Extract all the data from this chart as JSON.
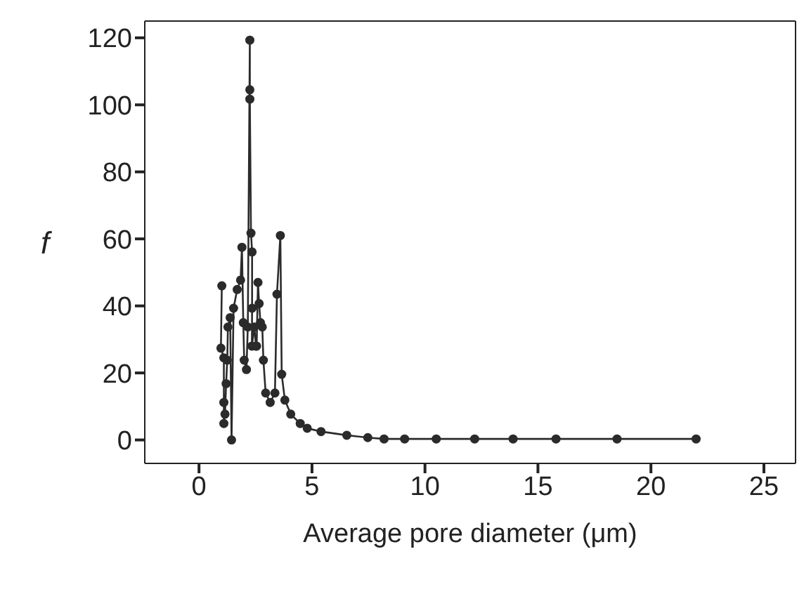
{
  "chart_data": {
    "type": "line",
    "xlabel": "Average pore diameter (μm)",
    "ylabel": "f",
    "xlim": [
      -2.4,
      26.4
    ],
    "ylim": [
      -7,
      125
    ],
    "xticks": [
      0,
      5,
      10,
      15,
      20,
      25
    ],
    "yticks": [
      0,
      20,
      40,
      60,
      80,
      100,
      120
    ],
    "marker": "circle",
    "line_style": "solid",
    "series": [
      {
        "color": "#2b2b2b",
        "x": [
          1.01,
          0.97,
          1.1,
          1.1,
          1.1,
          1.15,
          1.2,
          1.25,
          1.28,
          1.38,
          1.44,
          1.53,
          1.69,
          1.84,
          1.9,
          1.96,
          2.0,
          2.1,
          2.16,
          2.25,
          2.25,
          2.25,
          2.3,
          2.35,
          2.35,
          2.34,
          2.45,
          2.52,
          2.55,
          2.61,
          2.66,
          2.72,
          2.8,
          2.85,
          2.95,
          3.15,
          3.36,
          3.45,
          3.6,
          3.66,
          3.8,
          4.06,
          4.48,
          4.79,
          5.4,
          6.54,
          7.47,
          8.19,
          9.1,
          10.5,
          12.2,
          13.9,
          15.8,
          18.5,
          22
        ],
        "values": [
          46,
          27.4,
          24.5,
          11.2,
          4.9,
          7.7,
          16.8,
          23.8,
          33.7,
          36.5,
          0,
          39.3,
          44.9,
          47.7,
          57.5,
          35,
          23.8,
          21,
          33.7,
          119.3,
          104.5,
          101.7,
          61.7,
          56.1,
          39.3,
          28,
          33.7,
          28,
          28,
          47,
          40.7,
          35,
          33.7,
          23.8,
          14,
          11.2,
          14,
          43.5,
          61,
          19.6,
          11.9,
          7.7,
          4.9,
          3.5,
          2.5,
          1.4,
          0.7,
          0.3,
          0.3,
          0.3,
          0.3,
          0.3,
          0.3,
          0.3,
          0.3
        ]
      }
    ]
  }
}
